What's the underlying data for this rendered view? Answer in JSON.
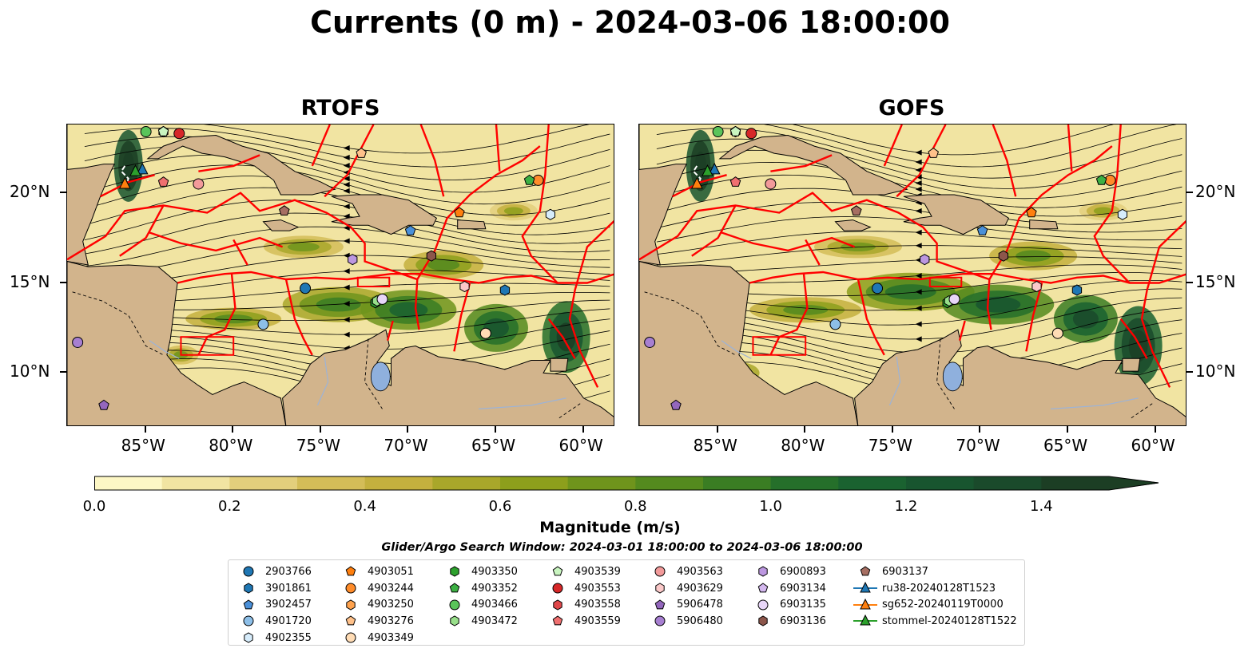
{
  "title": "Currents (0 m) - 2024-03-06 18:00:00",
  "panels": [
    {
      "id": "rtofs",
      "title": "RTOFS"
    },
    {
      "id": "gofs",
      "title": "GOFS"
    }
  ],
  "map": {
    "extent": {
      "lon_min": -89.5,
      "lon_max": -58.2,
      "lat_min": 7.0,
      "lat_max": 23.8
    },
    "lat_ticks": [
      {
        "value": 10,
        "label": "10°N"
      },
      {
        "value": 15,
        "label": "15°N"
      },
      {
        "value": 20,
        "label": "20°N"
      }
    ],
    "lon_ticks": [
      {
        "value": -85,
        "label": "85°W"
      },
      {
        "value": -80,
        "label": "80°W"
      },
      {
        "value": -75,
        "label": "75°W"
      },
      {
        "value": -70,
        "label": "70°W"
      },
      {
        "value": -65,
        "label": "65°W"
      },
      {
        "value": -60,
        "label": "60°W"
      }
    ],
    "colors": {
      "land": "#d2b48c",
      "eez_lines": "#ff0000",
      "rivers": "#9db3d6",
      "streamlines": "#000000"
    }
  },
  "colorbar": {
    "label": "Magnitude (m/s)",
    "ticks": [
      "0.0",
      "0.2",
      "0.4",
      "0.6",
      "0.8",
      "1.0",
      "1.2",
      "1.4"
    ],
    "levels": [
      0.0,
      0.1,
      0.2,
      0.3,
      0.4,
      0.5,
      0.6,
      0.7,
      0.8,
      0.9,
      1.0,
      1.1,
      1.2,
      1.3,
      1.4,
      1.5
    ],
    "colors": [
      "#fdf7c5",
      "#f1e4a2",
      "#e3cf7c",
      "#d4bd58",
      "#c4b03e",
      "#a9a72a",
      "#8d9f1c",
      "#6f941c",
      "#548a1e",
      "#3a7d23",
      "#256f2a",
      "#1a6230",
      "#18552f",
      "#1a4a2b",
      "#1c3e24"
    ],
    "extend": "max"
  },
  "search_window": "Glider/Argo Search Window: 2024-03-01 18:00:00 to 2024-03-06 18:00:00",
  "legend": [
    {
      "label": "2903766",
      "marker": "circle",
      "color": "#1f77b4"
    },
    {
      "label": "3901861",
      "marker": "hexagon",
      "color": "#1f77b4"
    },
    {
      "label": "3902457",
      "marker": "pentagon",
      "color": "#4a90d9"
    },
    {
      "label": "4901720",
      "marker": "circle",
      "color": "#8dbfe8"
    },
    {
      "label": "4902355",
      "marker": "hexagon",
      "color": "#d6ecfb"
    },
    {
      "label": "4903051",
      "marker": "pentagon",
      "color": "#ff7f0e"
    },
    {
      "label": "4903244",
      "marker": "circle",
      "color": "#ff8c2a"
    },
    {
      "label": "4903250",
      "marker": "hexagon",
      "color": "#ffa24d"
    },
    {
      "label": "4903276",
      "marker": "pentagon",
      "color": "#ffc18a"
    },
    {
      "label": "4903349",
      "marker": "circle",
      "color": "#ffdcb5"
    },
    {
      "label": "4903350",
      "marker": "hexagon",
      "color": "#2ca02c"
    },
    {
      "label": "4903352",
      "marker": "pentagon",
      "color": "#3cb043"
    },
    {
      "label": "4903466",
      "marker": "circle",
      "color": "#5ac45a"
    },
    {
      "label": "4903472",
      "marker": "hexagon",
      "color": "#98df8a"
    },
    {
      "label": "4903539",
      "marker": "pentagon",
      "color": "#c9f5c0"
    },
    {
      "label": "4903553",
      "marker": "circle",
      "color": "#d62728"
    },
    {
      "label": "4903558",
      "marker": "hexagon",
      "color": "#e0474a"
    },
    {
      "label": "4903559",
      "marker": "pentagon",
      "color": "#f07070"
    },
    {
      "label": "4903563",
      "marker": "circle",
      "color": "#f29a9a"
    },
    {
      "label": "4903629",
      "marker": "hexagon",
      "color": "#fbc9c9"
    },
    {
      "label": "5906478",
      "marker": "pentagon",
      "color": "#9467bd"
    },
    {
      "label": "5906480",
      "marker": "circle",
      "color": "#a77fd1"
    },
    {
      "label": "6900893",
      "marker": "hexagon",
      "color": "#bc97e0"
    },
    {
      "label": "6903134",
      "marker": "pentagon",
      "color": "#d4b8ef"
    },
    {
      "label": "6903135",
      "marker": "circle",
      "color": "#e8d6f8"
    },
    {
      "label": "6903136",
      "marker": "hexagon",
      "color": "#8c564b"
    },
    {
      "label": "6903137",
      "marker": "pentagon",
      "color": "#a66e62"
    },
    {
      "label": "ru38-20240128T1523",
      "marker": "triangle-line",
      "color": "#1f77b4"
    },
    {
      "label": "sg652-20240119T0000",
      "marker": "triangle-line",
      "color": "#ff7f0e"
    },
    {
      "label": "stommel-20240128T1522",
      "marker": "triangle-line",
      "color": "#2ca02c"
    }
  ],
  "platform_positions": [
    {
      "id": "2903766",
      "lon": -75.9,
      "lat": 14.7
    },
    {
      "id": "3901861",
      "lon": -64.5,
      "lat": 14.6
    },
    {
      "id": "3902457",
      "lon": -69.9,
      "lat": 17.9
    },
    {
      "id": "4901720",
      "lon": -78.3,
      "lat": 12.7
    },
    {
      "id": "4902355",
      "lon": -61.9,
      "lat": 18.8
    },
    {
      "id": "4903051",
      "lon": -67.1,
      "lat": 18.9
    },
    {
      "id": "4903244",
      "lon": -62.6,
      "lat": 20.7
    },
    {
      "id": "4903250",
      "lon": -84.0,
      "lat": 23.4
    },
    {
      "id": "4903276",
      "lon": -72.7,
      "lat": 22.2
    },
    {
      "id": "4903349",
      "lon": -65.6,
      "lat": 12.2
    },
    {
      "id": "4903350",
      "lon": -71.9,
      "lat": 13.9
    },
    {
      "id": "4903352",
      "lon": -63.1,
      "lat": 20.7
    },
    {
      "id": "4903466",
      "lon": -85.0,
      "lat": 23.4
    },
    {
      "id": "4903472",
      "lon": -71.8,
      "lat": 14.0
    },
    {
      "id": "4903539",
      "lon": -84.0,
      "lat": 23.4
    },
    {
      "id": "4903553",
      "lon": -83.1,
      "lat": 23.3
    },
    {
      "id": "4903558",
      "lon": -82.0,
      "lat": 20.5
    },
    {
      "id": "4903559",
      "lon": -84.0,
      "lat": 20.6
    },
    {
      "id": "4903563",
      "lon": -82.0,
      "lat": 20.5
    },
    {
      "id": "4903629",
      "lon": -66.8,
      "lat": 14.8
    },
    {
      "id": "5906478",
      "lon": -87.4,
      "lat": 8.2
    },
    {
      "id": "5906480",
      "lon": -88.9,
      "lat": 11.7
    },
    {
      "id": "6900893",
      "lon": -73.2,
      "lat": 16.3
    },
    {
      "id": "6903134",
      "lon": -71.5,
      "lat": 14.1
    },
    {
      "id": "6903135",
      "lon": -71.5,
      "lat": 14.1
    },
    {
      "id": "6903136",
      "lon": -68.7,
      "lat": 16.5
    },
    {
      "id": "6903137",
      "lon": -77.1,
      "lat": 19.0
    },
    {
      "id": "ru38-20240128T1523",
      "lon": -85.2,
      "lat": 21.3
    },
    {
      "id": "sg652-20240119T0000",
      "lon": -86.2,
      "lat": 20.5
    },
    {
      "id": "stommel-20240128T1522",
      "lon": -85.6,
      "lat": 21.2
    }
  ]
}
